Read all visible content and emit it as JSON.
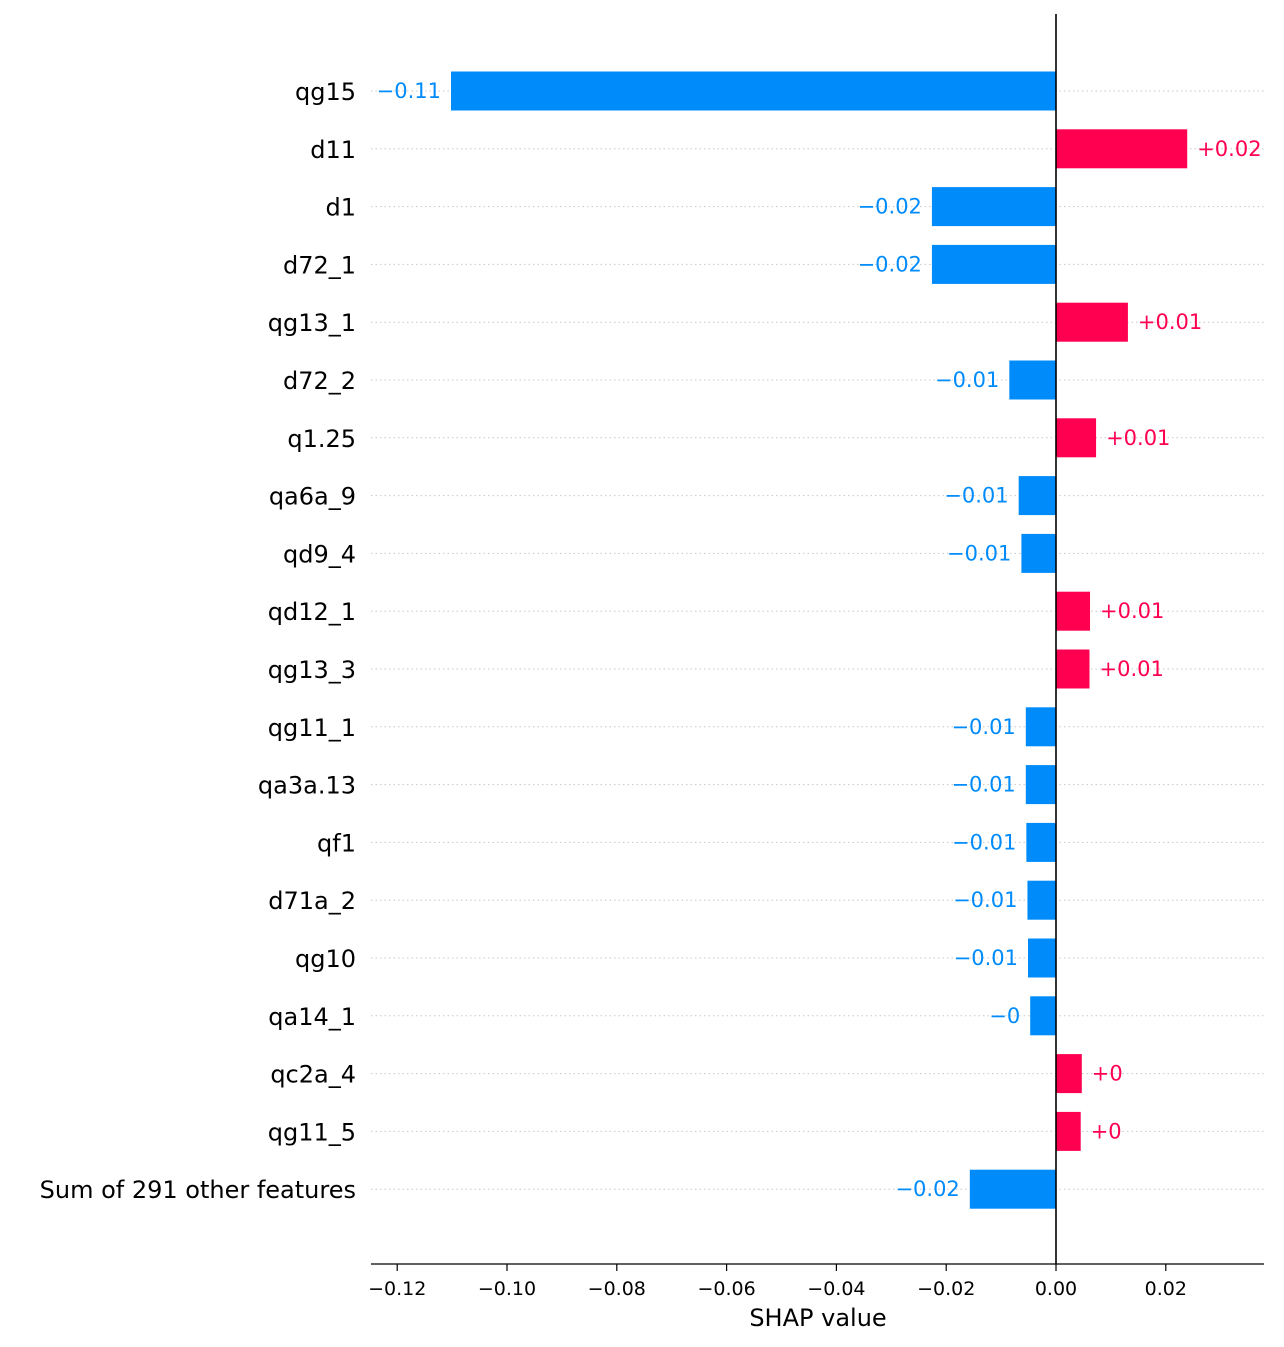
{
  "chart_data": {
    "type": "bar",
    "orientation": "horizontal",
    "xlabel": "SHAP value",
    "xlim": [
      -0.124,
      0.037
    ],
    "xticks": [
      -0.12,
      -0.1,
      -0.08,
      -0.06,
      -0.04,
      -0.02,
      0.0,
      0.02
    ],
    "xtick_labels": [
      "−0.12",
      "−0.10",
      "−0.08",
      "−0.06",
      "−0.04",
      "−0.02",
      "0.00",
      "0.02"
    ],
    "grid": "dotted horizontal lines at each feature row",
    "colors": {
      "negative": "#008bfb",
      "positive": "#ff0051"
    },
    "features": [
      {
        "name": "qg15",
        "value": -0.1102,
        "label": "−0.11"
      },
      {
        "name": "d11",
        "value": 0.0239,
        "label": "+0.02"
      },
      {
        "name": "d1",
        "value": -0.0226,
        "label": "−0.02"
      },
      {
        "name": "d72_1",
        "value": -0.0226,
        "label": "−0.02"
      },
      {
        "name": "qg13_1",
        "value": 0.0131,
        "label": "+0.01"
      },
      {
        "name": "d72_2",
        "value": -0.0085,
        "label": "−0.01"
      },
      {
        "name": "q1.25",
        "value": 0.0073,
        "label": "+0.01"
      },
      {
        "name": "qa6a_9",
        "value": -0.0068,
        "label": "−0.01"
      },
      {
        "name": "qd9_4",
        "value": -0.0063,
        "label": "−0.01"
      },
      {
        "name": "qd12_1",
        "value": 0.0062,
        "label": "+0.01"
      },
      {
        "name": "qg13_3",
        "value": 0.0061,
        "label": "+0.01"
      },
      {
        "name": "qg11_1",
        "value": -0.0055,
        "label": "−0.01"
      },
      {
        "name": "qa3a.13",
        "value": -0.0055,
        "label": "−0.01"
      },
      {
        "name": "qf1",
        "value": -0.0054,
        "label": "−0.01"
      },
      {
        "name": "d71a_2",
        "value": -0.0052,
        "label": "−0.01"
      },
      {
        "name": "qg10",
        "value": -0.0051,
        "label": "−0.01"
      },
      {
        "name": "qa14_1",
        "value": -0.0047,
        "label": "−0"
      },
      {
        "name": "qc2a_4",
        "value": 0.0047,
        "label": "+0"
      },
      {
        "name": "qg11_5",
        "value": 0.0045,
        "label": "+0"
      },
      {
        "name": "Sum of 291 other features",
        "value": -0.0157,
        "label": "−0.02"
      }
    ]
  }
}
